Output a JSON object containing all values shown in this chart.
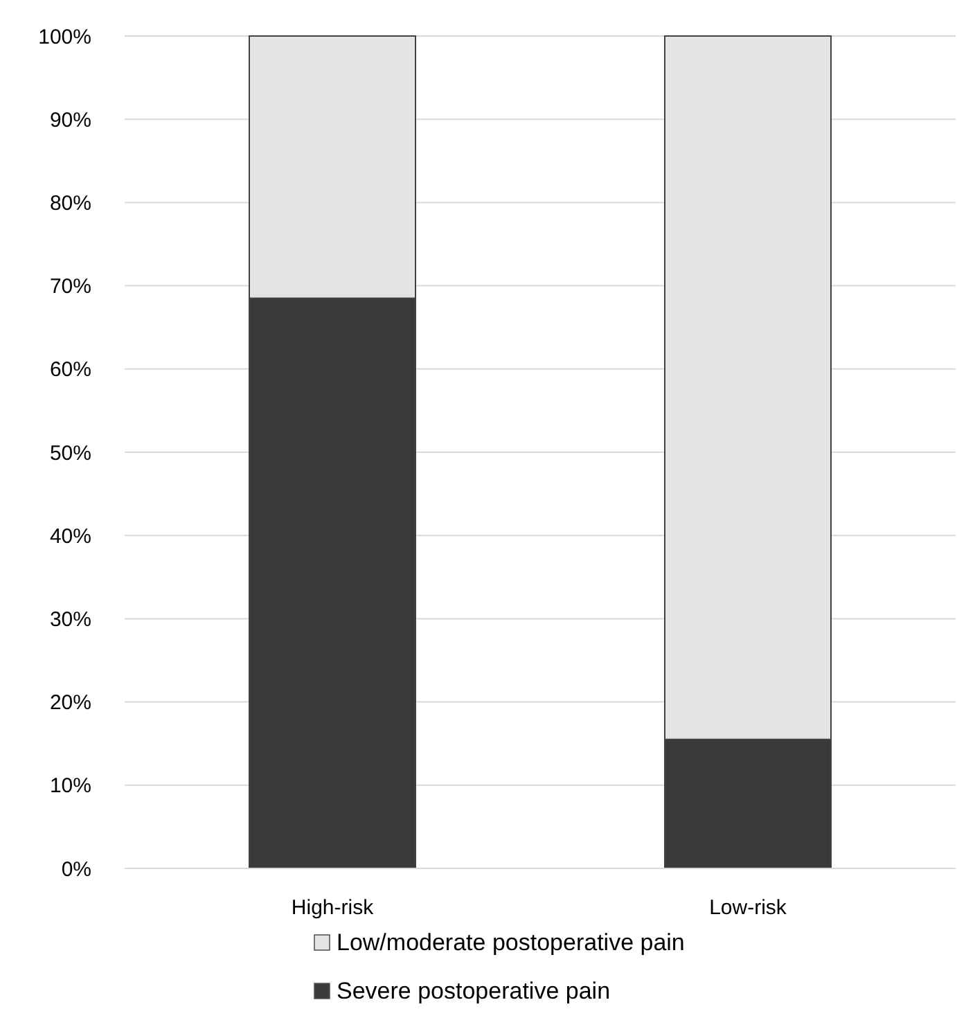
{
  "chart_data": {
    "type": "bar",
    "stacked": true,
    "categories": [
      "High-risk",
      "Low-risk"
    ],
    "series": [
      {
        "name": "Severe postoperative pain",
        "color": "#3b3a38",
        "values": [
          68.5,
          15.5
        ]
      },
      {
        "name": "Low/moderate postoperative pain",
        "color": "#e4e4e4",
        "values": [
          31.5,
          84.5
        ]
      }
    ],
    "ylim": [
      0,
      100
    ],
    "yticks": [
      {
        "value": 0,
        "label": "0%"
      },
      {
        "value": 10,
        "label": "10%"
      },
      {
        "value": 20,
        "label": "20%"
      },
      {
        "value": 30,
        "label": "30%"
      },
      {
        "value": 40,
        "label": "40%"
      },
      {
        "value": 50,
        "label": "50%"
      },
      {
        "value": 60,
        "label": "60%"
      },
      {
        "value": 70,
        "label": "70%"
      },
      {
        "value": 80,
        "label": "80%"
      },
      {
        "value": 90,
        "label": "90%"
      },
      {
        "value": 100,
        "label": "100%"
      }
    ],
    "grid": "y",
    "legend": "bottom"
  }
}
